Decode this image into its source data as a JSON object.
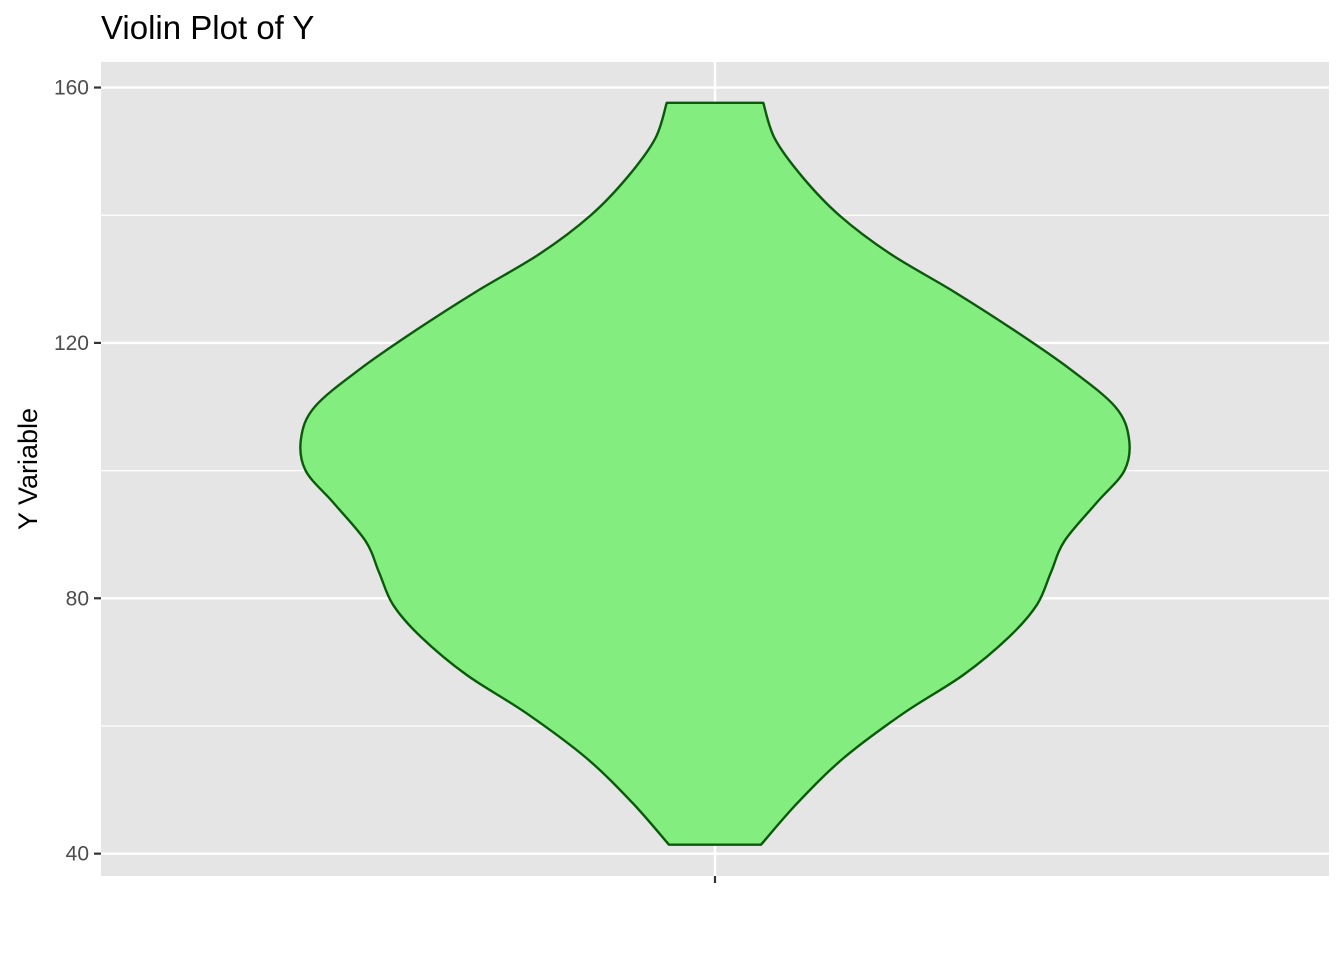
{
  "chart_data": {
    "type": "violin",
    "title": "Violin Plot of Y",
    "xlabel": "",
    "ylabel": "Y Variable",
    "ylim": [
      36.5,
      164
    ],
    "y_ticks": [
      40,
      80,
      120,
      160
    ],
    "y_minor": [
      60,
      100,
      140
    ],
    "x_categories": [
      ""
    ],
    "grid": true,
    "legend": "none",
    "fill_color": "#83ED7F",
    "outline_color": "#0B5A0B",
    "panel_color": "#E5E5E5",
    "grid_color": "#FFFFFF",
    "density_profile": [
      {
        "y": 41.4,
        "halfwidth": 0.1
      },
      {
        "y": 48,
        "halfwidth": 0.18
      },
      {
        "y": 55,
        "halfwidth": 0.28
      },
      {
        "y": 62,
        "halfwidth": 0.41
      },
      {
        "y": 68,
        "halfwidth": 0.54
      },
      {
        "y": 74,
        "halfwidth": 0.64
      },
      {
        "y": 79,
        "halfwidth": 0.7
      },
      {
        "y": 84,
        "halfwidth": 0.73
      },
      {
        "y": 89,
        "halfwidth": 0.76
      },
      {
        "y": 95,
        "halfwidth": 0.83
      },
      {
        "y": 100,
        "halfwidth": 0.89
      },
      {
        "y": 105,
        "halfwidth": 0.9
      },
      {
        "y": 110,
        "halfwidth": 0.87
      },
      {
        "y": 116,
        "halfwidth": 0.77
      },
      {
        "y": 122,
        "halfwidth": 0.65
      },
      {
        "y": 128,
        "halfwidth": 0.52
      },
      {
        "y": 134,
        "halfwidth": 0.38
      },
      {
        "y": 140,
        "halfwidth": 0.27
      },
      {
        "y": 146,
        "halfwidth": 0.19
      },
      {
        "y": 152,
        "halfwidth": 0.13
      },
      {
        "y": 157.6,
        "halfwidth": 0.105
      }
    ]
  }
}
